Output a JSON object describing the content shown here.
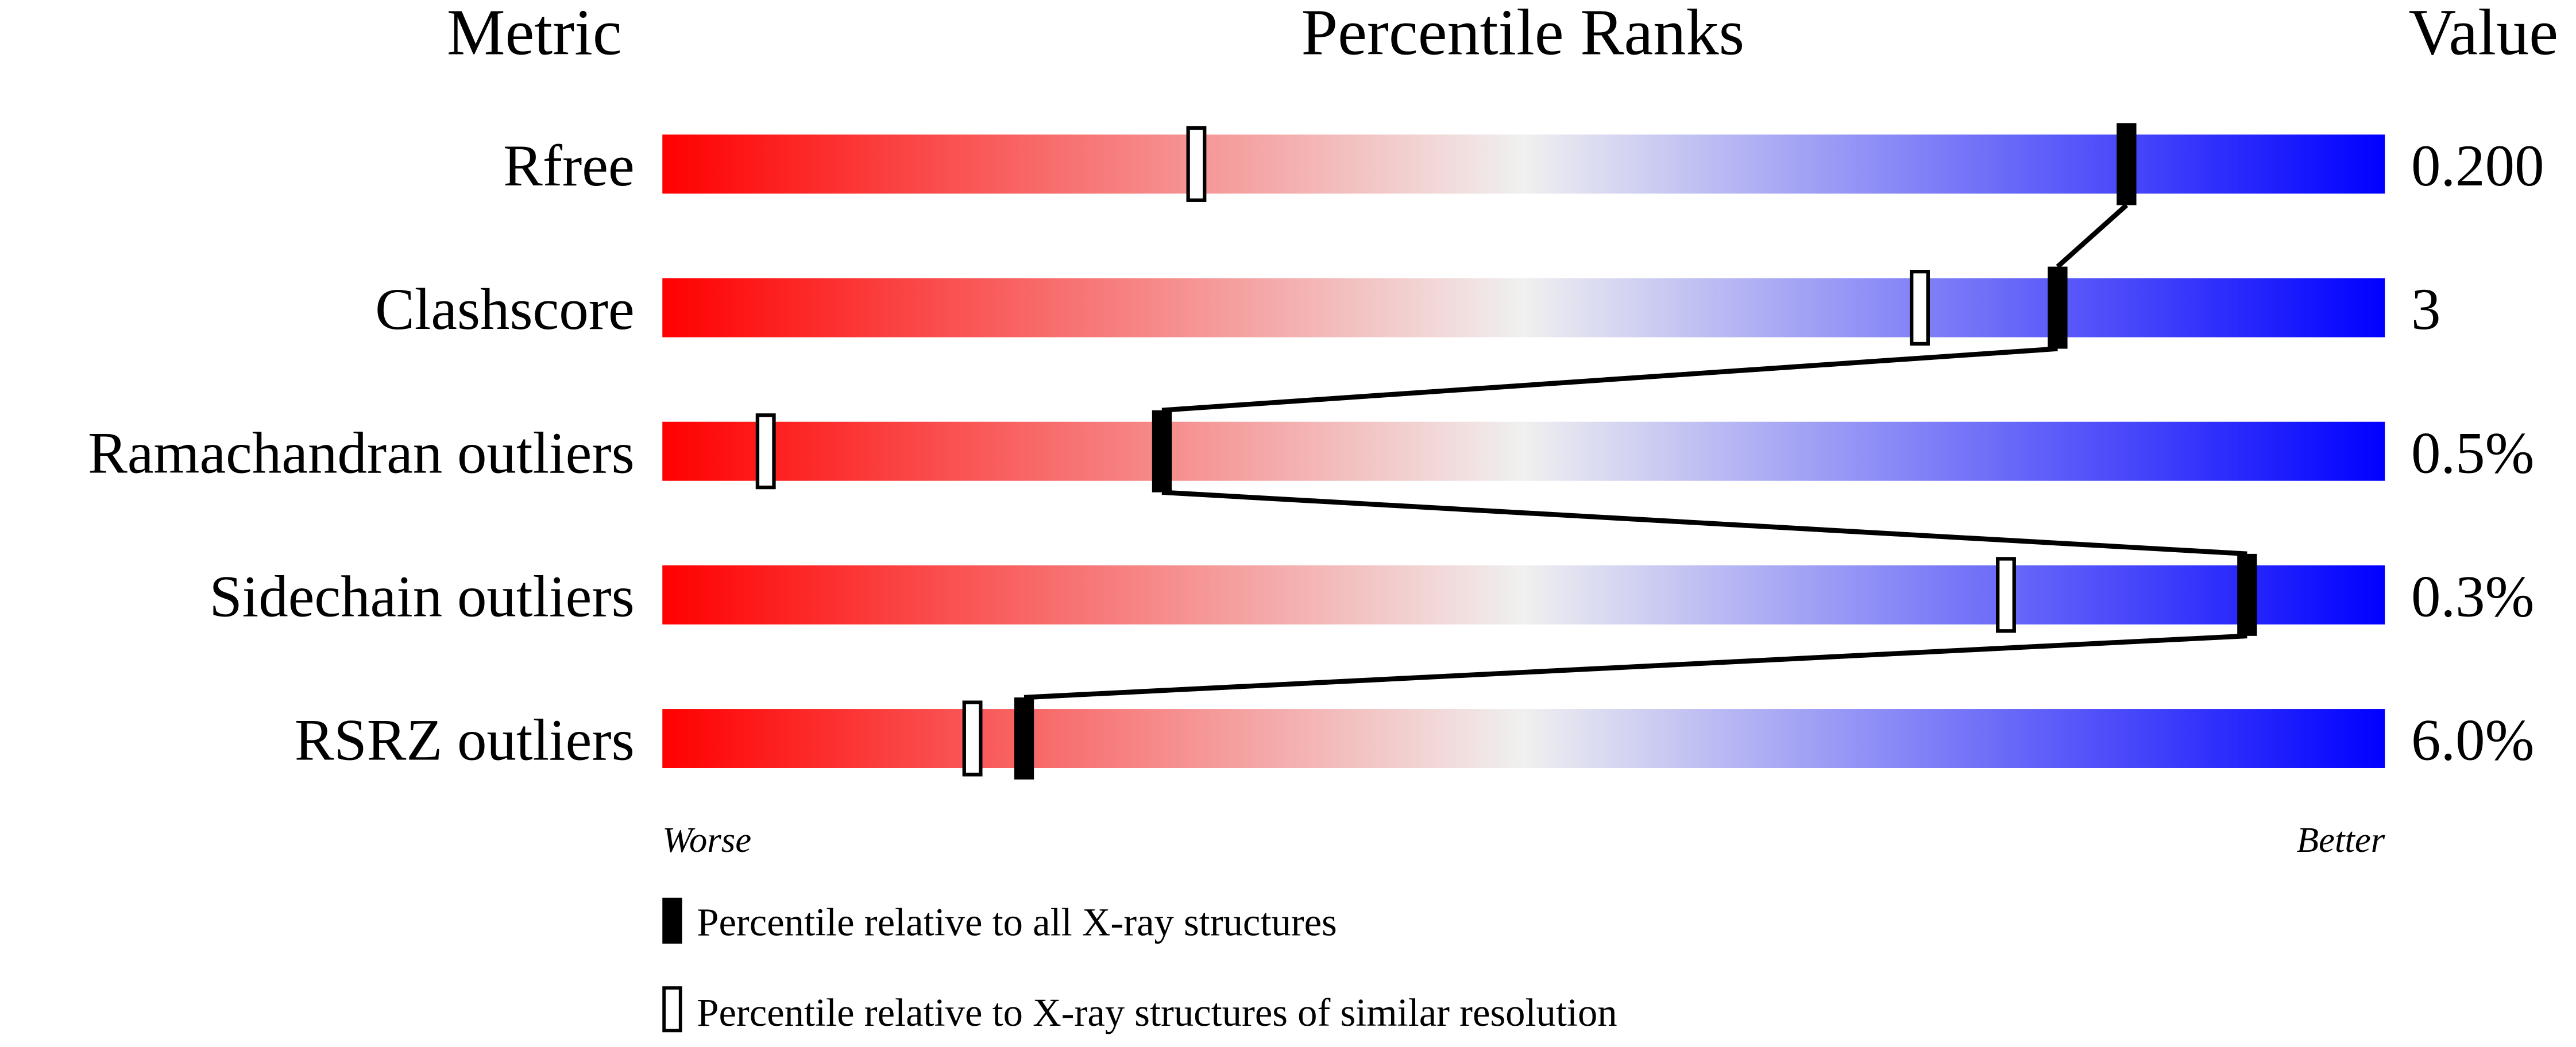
{
  "chart_data": {
    "type": "percentile-slider",
    "headers": {
      "metric": "Metric",
      "ranks": "Percentile Ranks",
      "value": "Value"
    },
    "xlim": [
      0,
      100
    ],
    "axis_labels": {
      "left": "Worse",
      "right": "Better"
    },
    "gradient_colors": [
      "#ff0000",
      "#f0f0f0",
      "#0000ff"
    ],
    "metrics": [
      {
        "name": "Rfree",
        "value": "0.200",
        "percentile_all": 85,
        "percentile_similar": 31
      },
      {
        "name": "Clashscore",
        "value": "3",
        "percentile_all": 81,
        "percentile_similar": 73
      },
      {
        "name": "Ramachandran outliers",
        "value": "0.5%",
        "percentile_all": 29,
        "percentile_similar": 6
      },
      {
        "name": "Sidechain outliers",
        "value": "0.3%",
        "percentile_all": 92,
        "percentile_similar": 78
      },
      {
        "name": "RSRZ outliers",
        "value": "6.0%",
        "percentile_all": 21,
        "percentile_similar": 18
      }
    ],
    "legend": [
      {
        "marker": "filled",
        "label": "Percentile relative to all X-ray structures"
      },
      {
        "marker": "open",
        "label": "Percentile relative to X-ray structures of similar resolution"
      }
    ]
  }
}
